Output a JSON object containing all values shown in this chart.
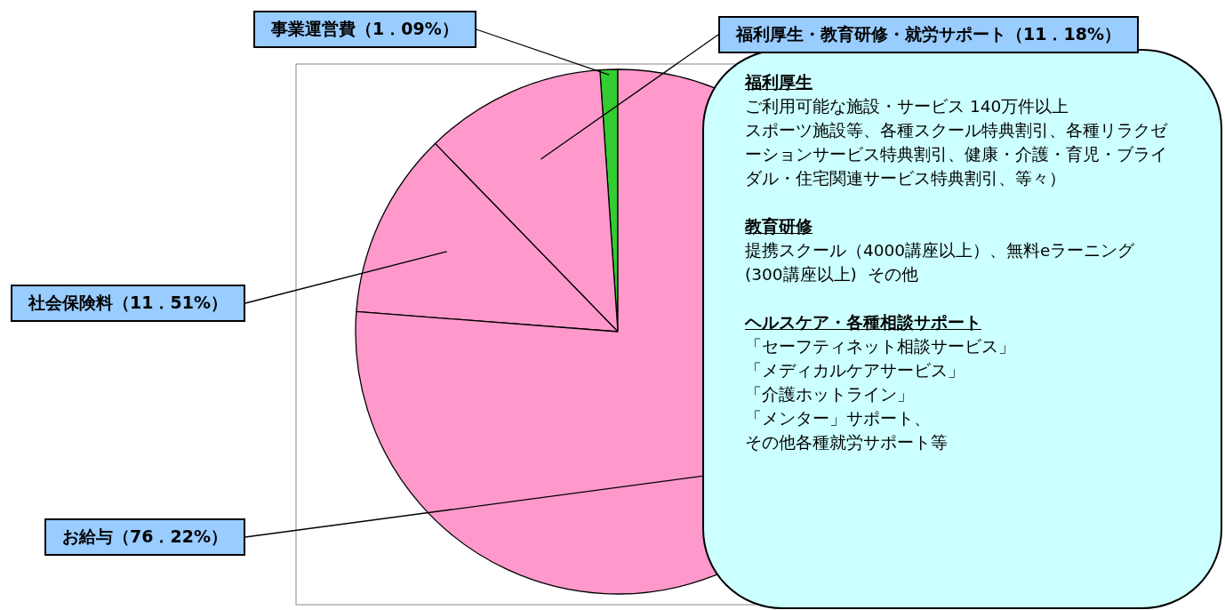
{
  "chart_data": {
    "type": "pie",
    "categories": [
      "事業運営費（1．09%）",
      "福利厚生・教育研修・就労サポート（11．18%）",
      "社会保険料（11．51%）",
      "お給与（76．22%）"
    ],
    "values": [
      1.09,
      11.18,
      11.51,
      76.22
    ],
    "colors": [
      "#33cc33",
      "#ff99cc",
      "#ff99cc",
      "#ff99cc"
    ],
    "annotations": [
      "福利厚生",
      "ご利用可能な施設・サービス 140万件以上",
      "スポーツ施設等、各種スクール特典割引、各種リラクゼーションサービス特典割引、健康・介護・育児・ブライダル・住宅関連サービス特典割引、等々）",
      "教育研修",
      "提携スクール（4000講座以上）、無料eラーニング(300講座以上)  その他",
      "ヘルスケア・各種相談サポート",
      "「セーフティネット相談サービス」",
      "「メディカルケアサービス」",
      "「介護ホットライン」",
      "「メンター」サポート、",
      "その他各種就労サポート等"
    ]
  }
}
